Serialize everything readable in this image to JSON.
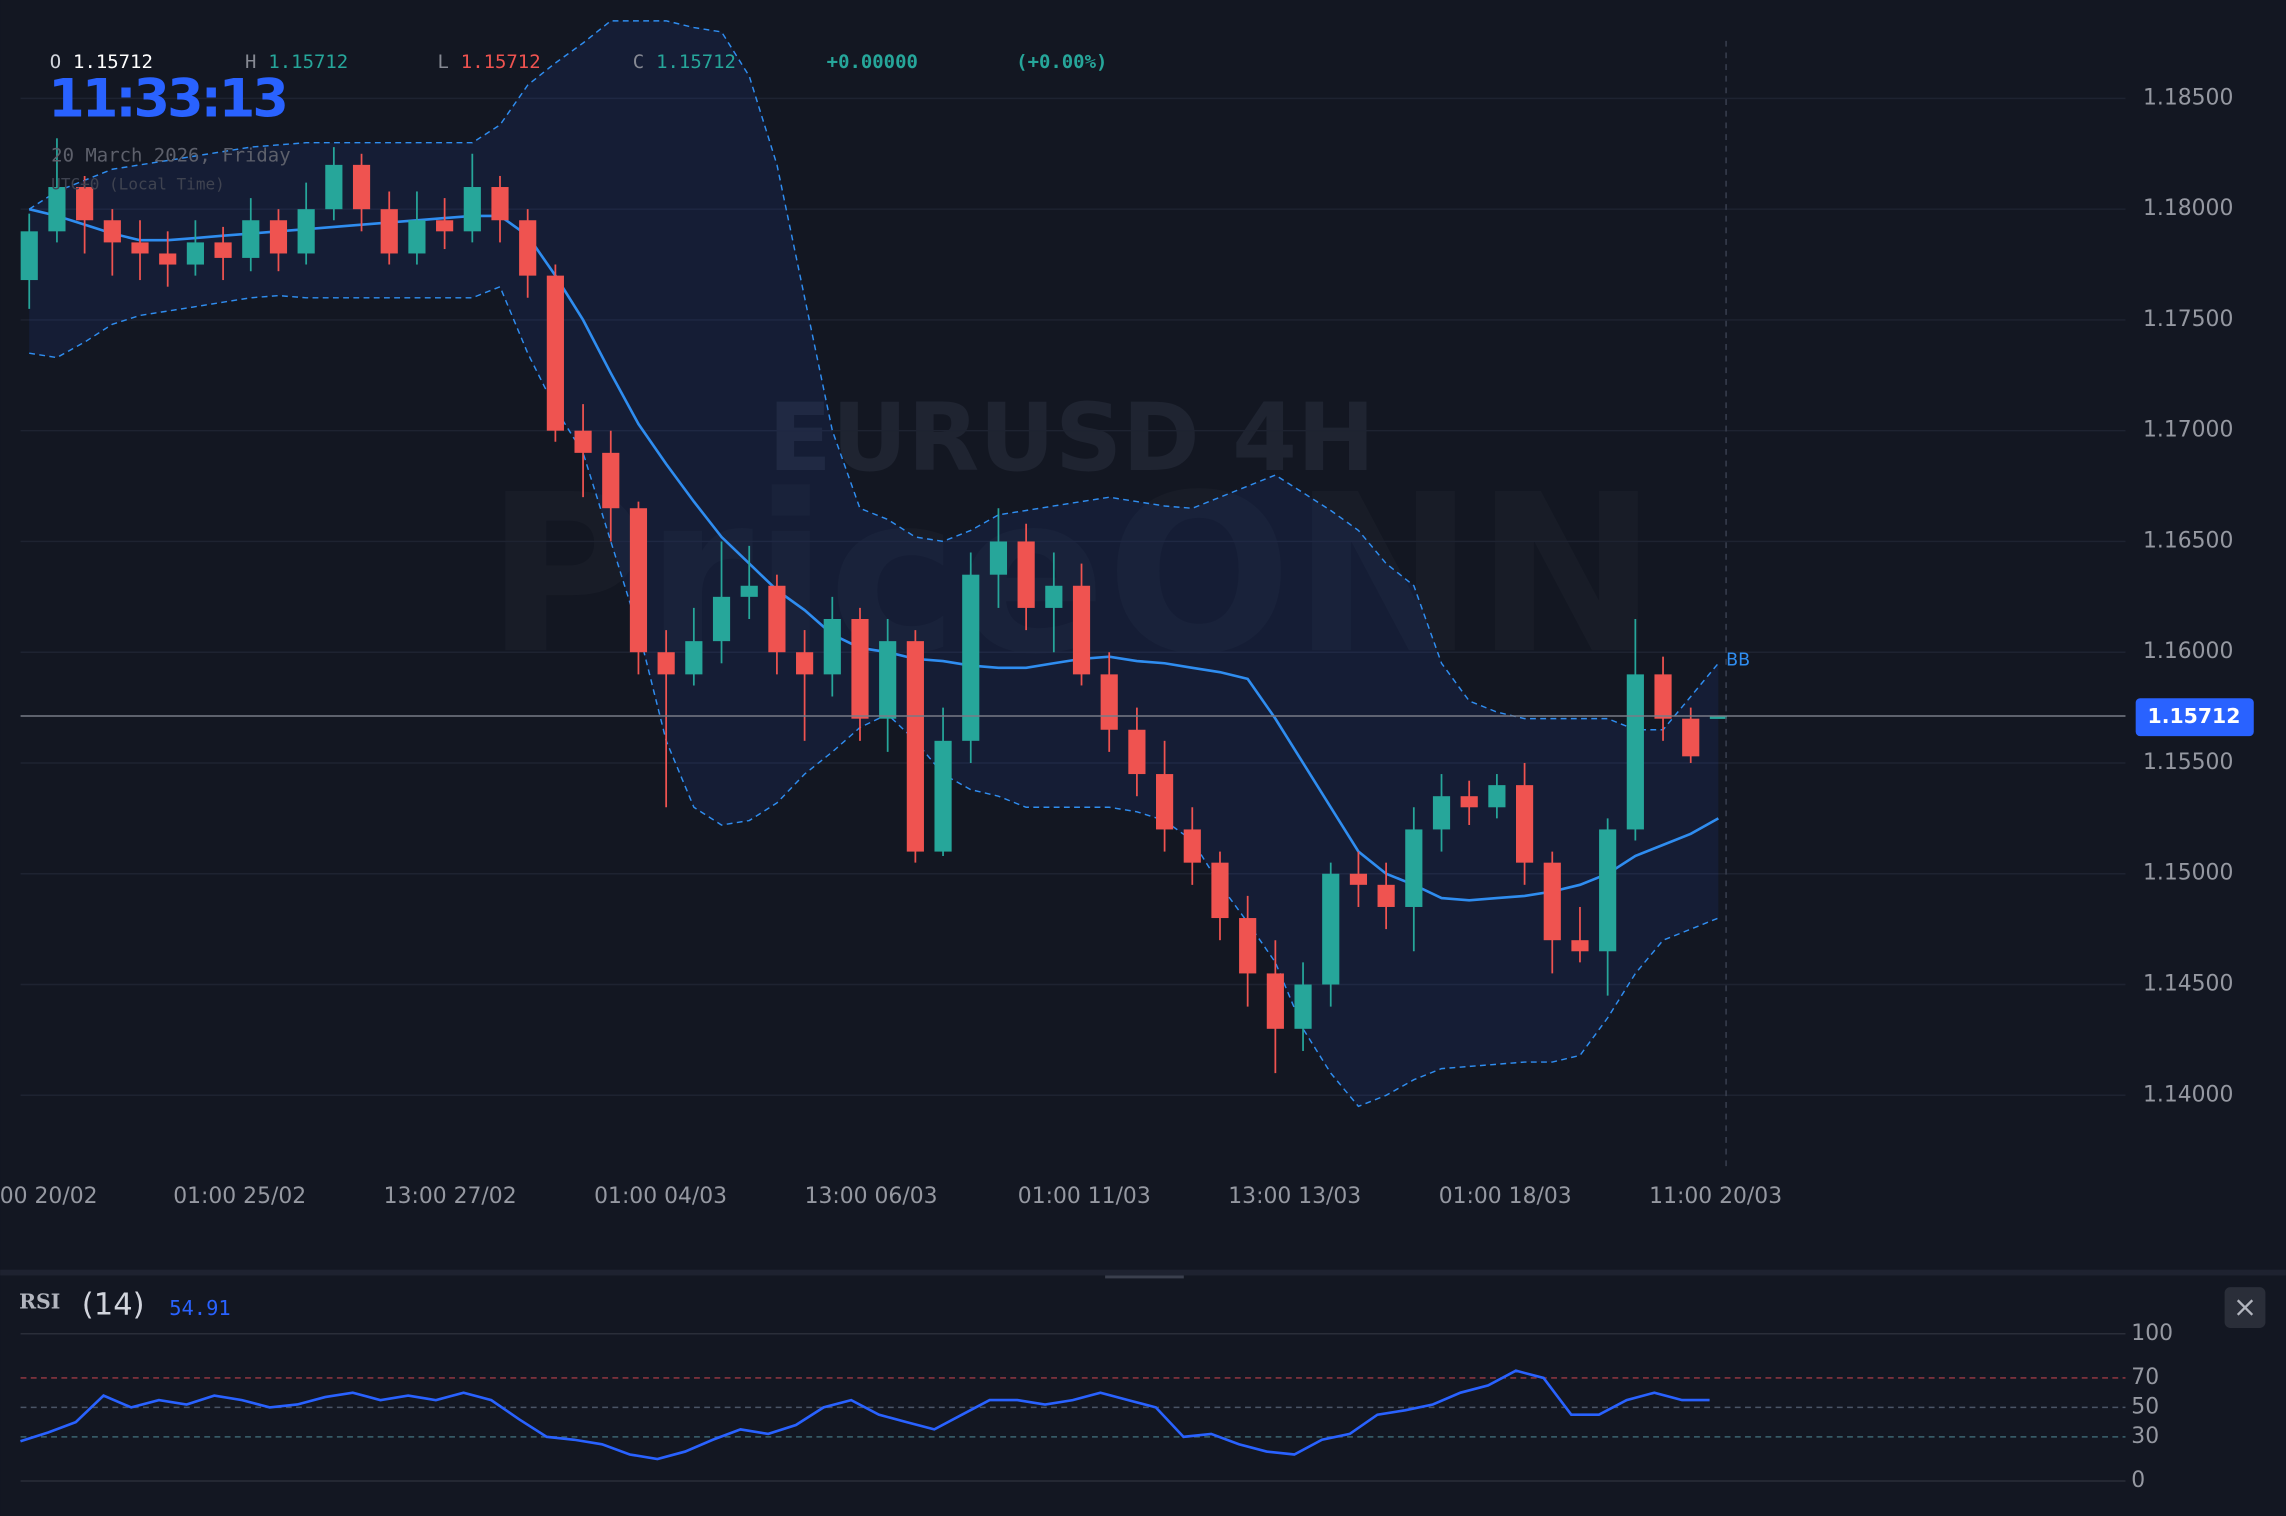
{
  "chart_data": {
    "type": "candlestick",
    "symbol_watermark": "EURUSD 4H",
    "brand_watermark": "PriceONN",
    "clock": "11:33:13",
    "date": "20 March 2026, Friday",
    "timezone": "UTC+0 (Local Time)",
    "ohlc_labels": [
      "O",
      "H",
      "L",
      "C"
    ],
    "change_label": "+0.00000",
    "change_pct_label": "(+0.00%)",
    "up_color": "#26a69a",
    "down_color": "#ef5350",
    "xlim": [
      -1.05,
      75.7
    ],
    "ylim": [
      1.1368,
      1.1876
    ],
    "grid": true,
    "yticks": [
      {
        "value": 1.185,
        "label": "1.18500"
      },
      {
        "value": 1.18,
        "label": "1.18000"
      },
      {
        "value": 1.175,
        "label": "1.17500"
      },
      {
        "value": 1.17,
        "label": "1.17000"
      },
      {
        "value": 1.165,
        "label": "1.16500"
      },
      {
        "value": 1.16,
        "label": "1.16000"
      },
      {
        "value": 1.155,
        "label": "1.15500"
      },
      {
        "value": 1.15,
        "label": "1.15000"
      },
      {
        "value": 1.145,
        "label": "1.14500"
      },
      {
        "value": 1.14,
        "label": "1.14000"
      }
    ],
    "xticks": [
      {
        "value": 0.7,
        "label": "00 20/02"
      },
      {
        "value": 7.6,
        "label": "01:00 25/02"
      },
      {
        "value": 15.2,
        "label": "13:00 27/02"
      },
      {
        "value": 22.8,
        "label": "01:00 04/03"
      },
      {
        "value": 30.4,
        "label": "13:00 06/03"
      },
      {
        "value": 38.1,
        "label": "01:00 11/03"
      },
      {
        "value": 45.7,
        "label": "13:00 13/03"
      },
      {
        "value": 53.3,
        "label": "01:00 18/03"
      },
      {
        "value": 60.9,
        "label": "11:00 20/03"
      }
    ],
    "ohlc": [
      [
        1.1768,
        1.1798,
        1.1755,
        1.179
      ],
      [
        1.179,
        1.1832,
        1.1785,
        1.181
      ],
      [
        1.181,
        1.1815,
        1.178,
        1.1795
      ],
      [
        1.1795,
        1.18,
        1.177,
        1.1785
      ],
      [
        1.1785,
        1.1795,
        1.1768,
        1.178
      ],
      [
        1.178,
        1.179,
        1.1765,
        1.1775
      ],
      [
        1.1775,
        1.1795,
        1.177,
        1.1785
      ],
      [
        1.1785,
        1.1792,
        1.1768,
        1.1778
      ],
      [
        1.1778,
        1.1805,
        1.1772,
        1.1795
      ],
      [
        1.1795,
        1.18,
        1.1772,
        1.178
      ],
      [
        1.178,
        1.1812,
        1.1775,
        1.18
      ],
      [
        1.18,
        1.1828,
        1.1795,
        1.182
      ],
      [
        1.182,
        1.1825,
        1.179,
        1.18
      ],
      [
        1.18,
        1.1808,
        1.1775,
        1.178
      ],
      [
        1.178,
        1.1808,
        1.1775,
        1.1795
      ],
      [
        1.1795,
        1.1805,
        1.1782,
        1.179
      ],
      [
        1.179,
        1.1825,
        1.1785,
        1.181
      ],
      [
        1.181,
        1.1815,
        1.1785,
        1.1795
      ],
      [
        1.1795,
        1.18,
        1.176,
        1.177
      ],
      [
        1.177,
        1.1775,
        1.1695,
        1.17
      ],
      [
        1.17,
        1.1712,
        1.167,
        1.169
      ],
      [
        1.169,
        1.17,
        1.165,
        1.1665
      ],
      [
        1.1665,
        1.1668,
        1.159,
        1.16
      ],
      [
        1.16,
        1.161,
        1.153,
        1.159
      ],
      [
        1.159,
        1.162,
        1.1585,
        1.1605
      ],
      [
        1.1605,
        1.165,
        1.1595,
        1.1625
      ],
      [
        1.1625,
        1.1648,
        1.1615,
        1.163
      ],
      [
        1.163,
        1.1635,
        1.159,
        1.16
      ],
      [
        1.16,
        1.161,
        1.156,
        1.159
      ],
      [
        1.159,
        1.1625,
        1.158,
        1.1615
      ],
      [
        1.1615,
        1.162,
        1.156,
        1.157
      ],
      [
        1.157,
        1.1615,
        1.1555,
        1.1605
      ],
      [
        1.1605,
        1.161,
        1.1505,
        1.151
      ],
      [
        1.151,
        1.1575,
        1.1508,
        1.156
      ],
      [
        1.156,
        1.1645,
        1.155,
        1.1635
      ],
      [
        1.1635,
        1.1665,
        1.162,
        1.165
      ],
      [
        1.165,
        1.1658,
        1.161,
        1.162
      ],
      [
        1.162,
        1.1645,
        1.16,
        1.163
      ],
      [
        1.163,
        1.164,
        1.1585,
        1.159
      ],
      [
        1.159,
        1.16,
        1.1555,
        1.1565
      ],
      [
        1.1565,
        1.1575,
        1.1535,
        1.1545
      ],
      [
        1.1545,
        1.156,
        1.151,
        1.152
      ],
      [
        1.152,
        1.153,
        1.1495,
        1.1505
      ],
      [
        1.1505,
        1.151,
        1.147,
        1.148
      ],
      [
        1.148,
        1.149,
        1.144,
        1.1455
      ],
      [
        1.1455,
        1.147,
        1.141,
        1.143
      ],
      [
        1.143,
        1.146,
        1.142,
        1.145
      ],
      [
        1.145,
        1.1505,
        1.144,
        1.15
      ],
      [
        1.15,
        1.151,
        1.1485,
        1.1495
      ],
      [
        1.1495,
        1.1505,
        1.1475,
        1.1485
      ],
      [
        1.1485,
        1.153,
        1.1465,
        1.152
      ],
      [
        1.152,
        1.1545,
        1.151,
        1.1535
      ],
      [
        1.1535,
        1.1542,
        1.1522,
        1.153
      ],
      [
        1.153,
        1.1545,
        1.1525,
        1.154
      ],
      [
        1.154,
        1.155,
        1.1495,
        1.1505
      ],
      [
        1.1505,
        1.151,
        1.1455,
        1.147
      ],
      [
        1.147,
        1.1485,
        1.146,
        1.1465
      ],
      [
        1.1465,
        1.1525,
        1.1445,
        1.152
      ],
      [
        1.152,
        1.1615,
        1.1515,
        1.159
      ],
      [
        1.159,
        1.1598,
        1.156,
        1.157
      ],
      [
        1.157,
        1.1575,
        1.155,
        1.1553
      ],
      [
        1.15712,
        1.15712,
        1.15712,
        1.15712
      ]
    ],
    "bb": {
      "label": "BB",
      "color": "#2f8df0",
      "upper": [
        1.18,
        1.1808,
        1.1813,
        1.1818,
        1.182,
        1.1822,
        1.1824,
        1.1826,
        1.1828,
        1.1829,
        1.183,
        1.183,
        1.183,
        1.183,
        1.183,
        1.183,
        1.183,
        1.1838,
        1.1856,
        1.1866,
        1.1875,
        1.1885,
        1.1885,
        1.1885,
        1.1882,
        1.188,
        1.186,
        1.182,
        1.176,
        1.17,
        1.1665,
        1.166,
        1.1652,
        1.165,
        1.1655,
        1.1662,
        1.1664,
        1.1666,
        1.1668,
        1.167,
        1.1668,
        1.1666,
        1.1665,
        1.167,
        1.1675,
        1.168,
        1.1672,
        1.1664,
        1.1655,
        1.164,
        1.163,
        1.1595,
        1.1578,
        1.1573,
        1.157,
        1.157,
        1.157,
        1.157,
        1.1565,
        1.1565,
        1.158,
        1.1595
      ],
      "middle": [
        1.18,
        1.1797,
        1.1793,
        1.1789,
        1.1786,
        1.1786,
        1.1787,
        1.1788,
        1.1789,
        1.179,
        1.1791,
        1.1792,
        1.1793,
        1.1794,
        1.1795,
        1.1796,
        1.1797,
        1.1797,
        1.1788,
        1.177,
        1.175,
        1.1726,
        1.1703,
        1.1685,
        1.1668,
        1.1652,
        1.164,
        1.1628,
        1.1619,
        1.1608,
        1.1602,
        1.16,
        1.1597,
        1.1596,
        1.1594,
        1.1593,
        1.1593,
        1.1595,
        1.1597,
        1.1598,
        1.1596,
        1.1595,
        1.1593,
        1.1591,
        1.1588,
        1.157,
        1.155,
        1.153,
        1.151,
        1.15,
        1.1495,
        1.1489,
        1.1488,
        1.1489,
        1.149,
        1.1492,
        1.1495,
        1.15,
        1.1508,
        1.1513,
        1.1518,
        1.1525
      ],
      "lower": [
        1.1735,
        1.1733,
        1.174,
        1.1748,
        1.1752,
        1.1754,
        1.1756,
        1.1758,
        1.176,
        1.1761,
        1.176,
        1.176,
        1.176,
        1.176,
        1.176,
        1.176,
        1.176,
        1.1765,
        1.1735,
        1.171,
        1.169,
        1.165,
        1.161,
        1.156,
        1.153,
        1.1522,
        1.1524,
        1.1532,
        1.1545,
        1.1555,
        1.1566,
        1.1572,
        1.156,
        1.1545,
        1.1538,
        1.1535,
        1.153,
        1.153,
        1.153,
        1.153,
        1.1528,
        1.1524,
        1.1515,
        1.1495,
        1.1478,
        1.146,
        1.143,
        1.141,
        1.1395,
        1.14,
        1.1407,
        1.1412,
        1.1413,
        1.1414,
        1.1415,
        1.1415,
        1.1418,
        1.1435,
        1.1455,
        1.147,
        1.1475,
        1.148
      ]
    },
    "rsi": {
      "label": "RSI",
      "period_label": "(14)",
      "color": "#2962ff",
      "ylim": [
        0,
        100
      ],
      "yticks": [
        100,
        70,
        50,
        30,
        0
      ],
      "levels": [
        70,
        50,
        30
      ],
      "level_colors": [
        "#9b3a44",
        "#4a5466",
        "#3c6470"
      ],
      "values": [
        27,
        33,
        40,
        58,
        50,
        55,
        52,
        58,
        55,
        50,
        52,
        57,
        60,
        55,
        58,
        55,
        60,
        55,
        42,
        30,
        28,
        25,
        18,
        15,
        20,
        28,
        35,
        32,
        38,
        50,
        55,
        45,
        40,
        35,
        45,
        55,
        55,
        52,
        55,
        60,
        55,
        50,
        30,
        32,
        25,
        20,
        18,
        28,
        32,
        45,
        48,
        52,
        60,
        65,
        75,
        70,
        45,
        45,
        55,
        60,
        55,
        54.91
      ]
    }
  }
}
